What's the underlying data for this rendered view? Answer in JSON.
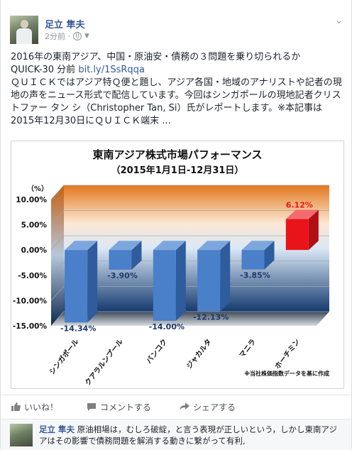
{
  "post": {
    "author": "足立 隼夫",
    "time": "2分前 ·",
    "text_line1": "2016年の東南アジア、中国・原油安・債務の３問題を乗り切られるか",
    "text_line2_prefix": "QUICK-30 分前 ",
    "link": "bit.ly/1SsRqqa",
    "body": "ＱＵＩＣＫではアジア特Ｑ便と題し、アジア各国・地域のアナリストや記者の現地の声をニュース形式で配信しています。今回はシンガポールの現地記者クリストファー タン シ（Christopher Tan, Si）氏がレポートします。※本記事は2015年12月30日にＱＵＩＣＫ端末 ..."
  },
  "chart_data": {
    "type": "bar",
    "title": "東南アジア株式市場パフォーマンス",
    "subtitle": "（2015年1月1日-12月31日）",
    "unit_label": "（%）",
    "categories": [
      "シンガポール",
      "クアラルンプール",
      "バンコク",
      "ジャカルタ",
      "マニラ",
      "ホーチミン"
    ],
    "values": [
      -14.34,
      -3.9,
      -14.0,
      -12.13,
      -3.85,
      6.12
    ],
    "value_labels": [
      "-14.34%",
      "-3.90%",
      "-14.00%",
      "-12.13%",
      "-3.85%",
      "6.12%"
    ],
    "ytick_labels": [
      "10.00%",
      "5.00%",
      "0.00%",
      "-5.00%",
      "-10.00%",
      "-15.00%"
    ],
    "yticks": [
      10,
      5,
      0,
      -5,
      -10,
      -15
    ],
    "ylim": [
      -15,
      10
    ],
    "note": "※当社株価指数データを基に作成",
    "colors": {
      "negative": "#4a7fc9",
      "positive": "#e8141a",
      "label_negative": "#1f3a6b",
      "label_positive": "#e8141a"
    }
  },
  "actions": {
    "like": "いいね！",
    "comment": "コメントする",
    "share": "シェアする"
  },
  "comment": {
    "author": "足立 隼夫",
    "text": "原油相場は，むしろ破綻，と言う表現が正しいという，しかし東南アジアはその影響で債務問題を解消する動きに繋がって有利,"
  }
}
